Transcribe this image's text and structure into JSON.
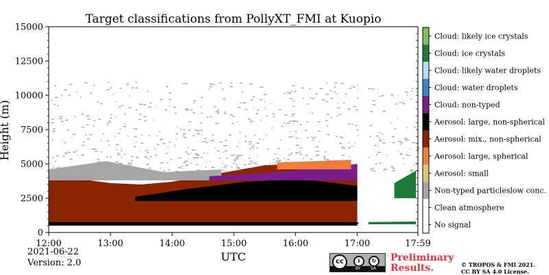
{
  "chart_data": {
    "type": "heatmap",
    "title": "Target classifications from PollyXT_FMI at Kuopio",
    "xlabel": "UTC",
    "ylabel": "Height (m)",
    "x_ticks": [
      "12:00",
      "13:00",
      "14:00",
      "15:00",
      "16:00",
      "17:00",
      "17:59"
    ],
    "x_tick_hours": [
      12.0,
      13.0,
      14.0,
      15.0,
      16.0,
      17.0,
      17.983
    ],
    "xlim_hours": [
      12.0,
      17.983
    ],
    "y_ticks": [
      0,
      2500,
      5000,
      7500,
      10000,
      12500,
      15000
    ],
    "ylim": [
      0,
      15000
    ],
    "legend_placement": "right colorbar",
    "classes": [
      {
        "label": "No signal",
        "color": "#ffffff"
      },
      {
        "label": "Clean atmosphere",
        "color": "#ffffff"
      },
      {
        "label": "Non-typed particleslow conc.",
        "color": "#a6a6a6"
      },
      {
        "label": "Aerosol: small",
        "color": "#dcc67a"
      },
      {
        "label": "Aerosol: large, spherical",
        "color": "#f07c3c"
      },
      {
        "label": "Aerosol: mix., non-spherical",
        "color": "#8b2500"
      },
      {
        "label": "Aerosol: large, non-spherical",
        "color": "#000000"
      },
      {
        "label": "Cloud: non-typed",
        "color": "#7a1f8a"
      },
      {
        "label": "Cloud: water droplets",
        "color": "#3d85c6"
      },
      {
        "label": "Cloud: likely water droplets",
        "color": "#b9dcf5"
      },
      {
        "label": "Cloud: ice crystals",
        "color": "#1f7a3a"
      },
      {
        "label": "Cloud: likely ice crystals",
        "color": "#7fbf5f"
      }
    ],
    "layers": [
      {
        "class": "Aerosol: mix., non-spherical",
        "from_hour": 12.0,
        "to_hour": 17.0,
        "bottom_m": 500,
        "top_m": [
          4000,
          3900,
          3600,
          3500,
          3700,
          4100,
          4500,
          4900,
          5000,
          4700,
          4400
        ]
      },
      {
        "class": "Aerosol: large, non-spherical",
        "from_hour": 13.4,
        "to_hour": 17.0,
        "bottom_m": 2300,
        "top_m": [
          2600,
          3200,
          3700,
          3900,
          3400
        ]
      },
      {
        "class": "Non-typed particleslow conc.",
        "from_hour": 12.0,
        "to_hour": 14.8,
        "bottom_m": 3800,
        "top_m": [
          4600,
          5200,
          4400,
          4600
        ]
      },
      {
        "class": "Cloud: non-typed",
        "from_hour": 14.6,
        "to_hour": 17.0,
        "bottom_m": 3800,
        "top_m": [
          4100,
          4300,
          4600,
          5000
        ]
      },
      {
        "class": "Aerosol: large, spherical",
        "from_hour": 15.7,
        "to_hour": 16.9,
        "bottom_m": 4600,
        "top_m": [
          5100,
          5300
        ]
      },
      {
        "class": "Cloud: ice crystals",
        "from_hour": 17.6,
        "to_hour": 17.95,
        "bottom_m": 2500,
        "top_m": [
          3600,
          4500
        ]
      },
      {
        "class": "Cloud: ice crystals",
        "from_hour": 16.0,
        "to_hour": 17.95,
        "bottom_m": 600,
        "top_m": [
          700,
          800
        ]
      }
    ],
    "no_signal_gaps_hours": [
      [
        17.02,
        17.18
      ]
    ],
    "scattered_signal_top_m": 11000
  },
  "footer": {
    "date": "2021-06-22",
    "version": "Version: 2.0",
    "license_badge": {
      "cc": "cc",
      "by": "BY",
      "sa": "SA"
    },
    "preliminary_line1": "Preliminary",
    "preliminary_line2": "Results.",
    "copyright_line1": "© TROPOS & FMI 2021.",
    "copyright_line2": "CC BY SA 4.0 License."
  }
}
